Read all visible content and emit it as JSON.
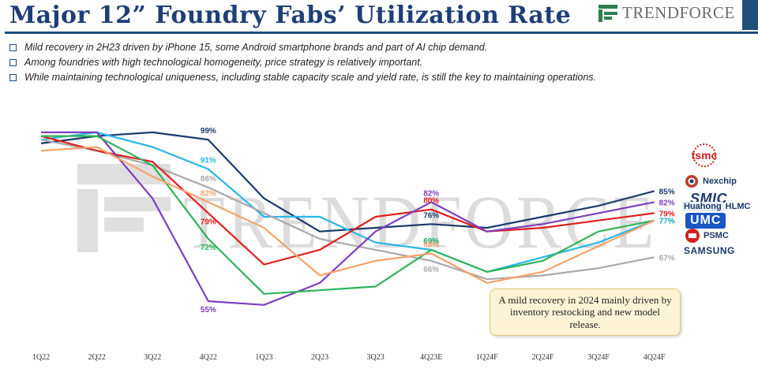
{
  "header": {
    "title": "Major 12” Foundry Fabs’ Utilization Rate",
    "brand": "TRENDFORCE"
  },
  "bullets": [
    "Mild recovery in 2H23 driven by iPhone 15, some Android smartphone brands and part of AI chip demand.",
    "Among foundries with high technological homogeneity, price strategy is relatively important.",
    "While maintaining technological uniqueness, including stable capacity scale and yield rate, is still the key to maintaining operations."
  ],
  "watermark": "TRENDFORCE",
  "note": "A mild recovery in 2024 mainly driven by inventory restocking and new model release.",
  "companies": {
    "tsmc": "tsmc",
    "nexchip": "Nexchip",
    "smic": "SMIC",
    "huahong": "Huahong",
    "hlmc": "HLMC",
    "umc": "UMC",
    "psmc": "PSMC",
    "samsung": "SAMSUNG"
  },
  "colors": {
    "title": "#1f3e78",
    "tsmc": "#1b3a6b",
    "umc": "#2ab7e6",
    "samsung": "#a9a9a9",
    "smic": "#e02020",
    "nexchip": "#7b3fbf",
    "psmc": "#2fb35a",
    "huahong": "#f4a46a"
  },
  "chart_data": {
    "type": "line",
    "categories": [
      "1Q22",
      "2Q22",
      "3Q22",
      "4Q22",
      "1Q23",
      "2Q23",
      "3Q23",
      "4Q23E",
      "1Q24F",
      "2Q24F",
      "3Q24F",
      "4Q24F"
    ],
    "series": [
      {
        "name": "TSMC",
        "color": "#1b3a6b",
        "values": [
          98,
          100,
          101,
          99,
          83,
          74,
          75,
          76,
          75,
          78,
          81,
          85
        ]
      },
      {
        "name": "UMC",
        "color": "#2ab7e6",
        "values": [
          99,
          101,
          97,
          91,
          78,
          78,
          71,
          69,
          63,
          67,
          71,
          77
        ]
      },
      {
        "name": "Samsung",
        "color": "#a9a9a9",
        "values": [
          99,
          96,
          92,
          86,
          79,
          72,
          69,
          66,
          61,
          62,
          64,
          67
        ]
      },
      {
        "name": "SMIC",
        "color": "#e02020",
        "values": [
          100,
          96,
          93,
          79,
          65,
          69,
          78,
          80,
          74,
          75,
          77,
          79
        ]
      },
      {
        "name": "Nexchip",
        "color": "#7b3fbf",
        "values": [
          101,
          101,
          83,
          55,
          54,
          60,
          74,
          82,
          74,
          76,
          79,
          82
        ]
      },
      {
        "name": "PSMC",
        "color": "#2fb35a",
        "values": [
          100,
          100,
          92,
          72,
          57,
          58,
          59,
          69,
          63,
          66,
          74,
          77
        ]
      },
      {
        "name": "Huahong",
        "color": "#f4a46a",
        "values": [
          96,
          97,
          89,
          82,
          75,
          62,
          66,
          68,
          60,
          63,
          70,
          77
        ]
      }
    ],
    "data_labels": [
      {
        "series": "TSMC",
        "x": "4Q22",
        "text": "99%"
      },
      {
        "series": "UMC",
        "x": "4Q22",
        "text": "91%"
      },
      {
        "series": "Samsung",
        "x": "4Q22",
        "text": "86%"
      },
      {
        "series": "Huahong",
        "x": "4Q22",
        "text": "82%"
      },
      {
        "series": "SMIC",
        "x": "4Q22",
        "text": "79%"
      },
      {
        "series": "PSMC",
        "x": "4Q22",
        "text": "72%"
      },
      {
        "series": "Nexchip",
        "x": "4Q22",
        "text": "55%"
      },
      {
        "series": "SMIC",
        "x": "4Q23E",
        "text": "80%"
      },
      {
        "series": "Nexchip",
        "x": "4Q23E",
        "text": "82%"
      },
      {
        "series": "TSMC",
        "x": "4Q23E",
        "text": "76%"
      },
      {
        "series": "UMC",
        "x": "4Q23E",
        "text": "69%"
      },
      {
        "series": "PSMC",
        "x": "4Q23E",
        "text": "69%"
      },
      {
        "series": "Huahong",
        "x": "4Q23E",
        "text": "68%"
      },
      {
        "series": "Samsung",
        "x": "4Q23E",
        "text": "66%"
      },
      {
        "series": "TSMC",
        "x": "4Q24F",
        "text": "85%"
      },
      {
        "series": "Nexchip",
        "x": "4Q24F",
        "text": "82%"
      },
      {
        "series": "SMIC",
        "x": "4Q24F",
        "text": "79%"
      },
      {
        "series": "Huahong",
        "x": "4Q24F",
        "text": "77%"
      },
      {
        "series": "PSMC",
        "x": "4Q24F",
        "text": "77%"
      },
      {
        "series": "UMC",
        "x": "4Q24F",
        "text": "77%"
      },
      {
        "series": "Samsung",
        "x": "4Q24F",
        "text": "67%"
      }
    ],
    "title": "Major 12” Foundry Fabs’ Utilization Rate",
    "xlabel": "",
    "ylabel": "",
    "ylim": [
      40,
      110
    ],
    "grid": false,
    "legend": "right (company logos)"
  }
}
